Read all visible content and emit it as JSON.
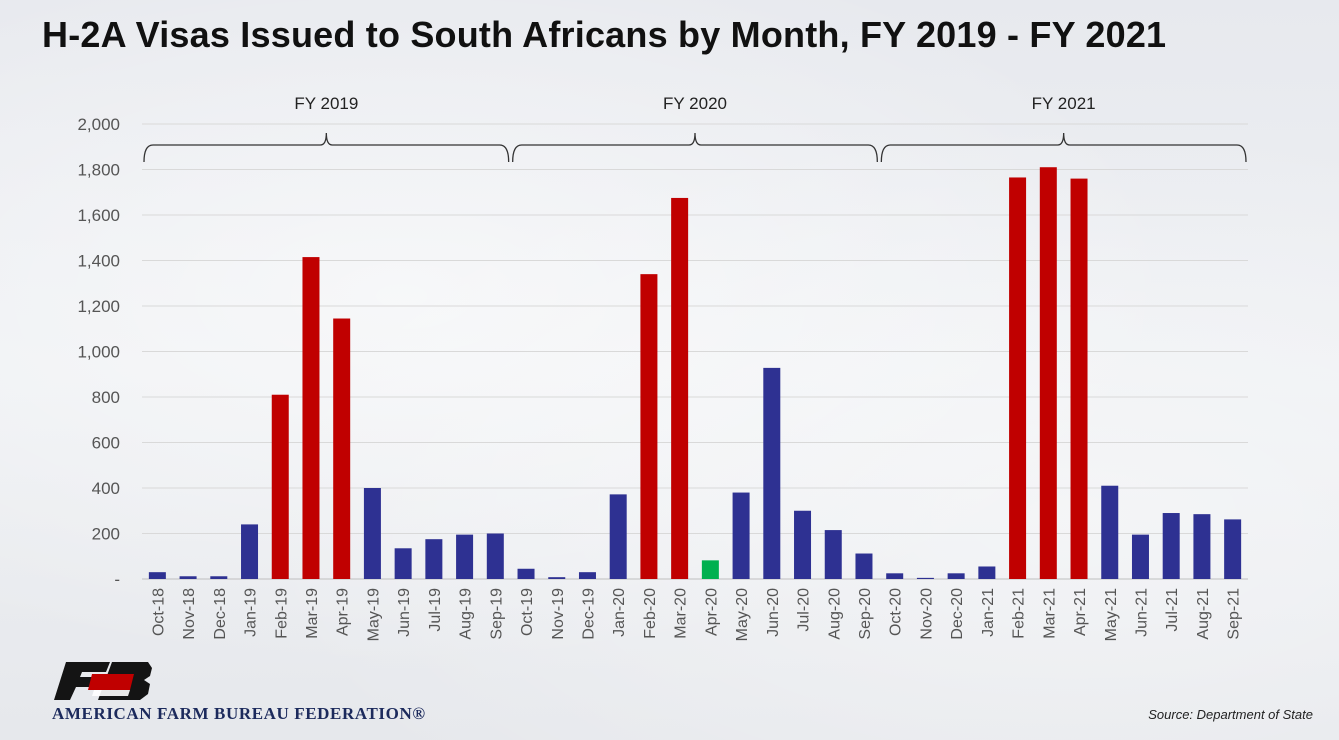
{
  "title": "H-2A Visas Issued to South Africans by Month, FY 2019 - FY 2021",
  "source": "Source: Department of State",
  "logo": {
    "text": "AMERICAN FARM BUREAU FEDERATION®",
    "emblem": "FB"
  },
  "colors": {
    "blue": "#2e3192",
    "red": "#c00000",
    "green": "#00b050"
  },
  "chart_data": {
    "type": "bar",
    "title": "H-2A Visas Issued to South Africans by Month, FY 2019 - FY 2021",
    "xlabel": "",
    "ylabel": "",
    "ylim": [
      0,
      2000
    ],
    "yticks": [
      0,
      200,
      400,
      600,
      800,
      1000,
      1200,
      1400,
      1600,
      1800,
      2000
    ],
    "ytick_labels": [
      "-",
      "200",
      "400",
      "600",
      "800",
      "1,000",
      "1,200",
      "1,400",
      "1,600",
      "1,800",
      "2,000"
    ],
    "grid": true,
    "groups": [
      {
        "label": "FY 2019",
        "start": 0,
        "end": 11
      },
      {
        "label": "FY 2020",
        "start": 12,
        "end": 23
      },
      {
        "label": "FY 2021",
        "start": 24,
        "end": 35
      }
    ],
    "categories": [
      "Oct-18",
      "Nov-18",
      "Dec-18",
      "Jan-19",
      "Feb-19",
      "Mar-19",
      "Apr-19",
      "May-19",
      "Jun-19",
      "Jul-19",
      "Aug-19",
      "Sep-19",
      "Oct-19",
      "Nov-19",
      "Dec-19",
      "Jan-20",
      "Feb-20",
      "Mar-20",
      "Apr-20",
      "May-20",
      "Jun-20",
      "Jul-20",
      "Aug-20",
      "Sep-20",
      "Oct-20",
      "Nov-20",
      "Dec-20",
      "Jan-21",
      "Feb-21",
      "Mar-21",
      "Apr-21",
      "May-21",
      "Jun-21",
      "Jul-21",
      "Aug-21",
      "Sep-21"
    ],
    "values": [
      30,
      12,
      12,
      240,
      810,
      1415,
      1145,
      400,
      135,
      175,
      195,
      200,
      45,
      8,
      30,
      372,
      1340,
      1675,
      82,
      380,
      928,
      300,
      215,
      112,
      25,
      5,
      25,
      55,
      1765,
      1810,
      1760,
      410,
      195,
      290,
      285,
      262
    ],
    "bar_colors": [
      "blue",
      "blue",
      "blue",
      "blue",
      "red",
      "red",
      "red",
      "blue",
      "blue",
      "blue",
      "blue",
      "blue",
      "blue",
      "blue",
      "blue",
      "blue",
      "red",
      "red",
      "green",
      "blue",
      "blue",
      "blue",
      "blue",
      "blue",
      "blue",
      "blue",
      "blue",
      "blue",
      "red",
      "red",
      "red",
      "blue",
      "blue",
      "blue",
      "blue",
      "blue"
    ]
  }
}
